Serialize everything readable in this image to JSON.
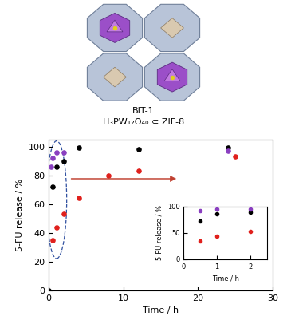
{
  "chart_data": [
    {
      "type": "scatter",
      "title": "BIT-1",
      "subtitle": "H₃PW₁₂O₄₀ ⊂ ZIF-8",
      "x_label": "Time / h",
      "y_label": "5-FU release / %",
      "xlim": [
        0,
        30
      ],
      "xticks": [
        0,
        10,
        20,
        30
      ],
      "ylim": [
        0,
        105
      ],
      "yticks": [
        0,
        20,
        40,
        60,
        80,
        100
      ],
      "marker": "o",
      "series": [
        {
          "color": "#000000",
          "x": [
            0,
            0.5,
            1,
            2,
            4,
            12,
            24
          ],
          "values": [
            0,
            72,
            86,
            90,
            99,
            98,
            99
          ]
        },
        {
          "color": "#8a3fc0",
          "x": [
            0.25,
            0.5,
            1,
            2,
            24
          ],
          "values": [
            86,
            92,
            96,
            96,
            97
          ]
        },
        {
          "color": "#e0201c",
          "x": [
            0.5,
            1,
            2,
            4,
            8,
            12,
            25
          ],
          "values": [
            35,
            44,
            53,
            64,
            80,
            83,
            93
          ]
        }
      ]
    },
    {
      "type": "scatter",
      "x_label": "Time / h",
      "y_label": "5-FU release / %",
      "xlim": [
        0,
        2.5
      ],
      "xticks": [
        0,
        1,
        2
      ],
      "ylim": [
        0,
        100
      ],
      "yticks": [
        0,
        50,
        100
      ],
      "marker": "o",
      "series": [
        {
          "color": "#000000",
          "x": [
            0.5,
            1,
            2
          ],
          "values": [
            72,
            86,
            90
          ]
        },
        {
          "color": "#8a3fc0",
          "x": [
            0.5,
            1,
            2
          ],
          "values": [
            92,
            96,
            96
          ]
        },
        {
          "color": "#e0201c",
          "x": [
            0.5,
            1,
            2
          ],
          "values": [
            35,
            44,
            53
          ]
        }
      ]
    }
  ]
}
